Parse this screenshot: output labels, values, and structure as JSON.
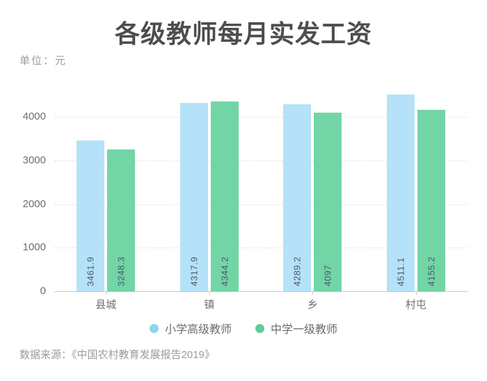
{
  "page": {
    "unit_label": "单位：元",
    "source": "数据来源：《中国农村教育发展报告2019》"
  },
  "chart_data": {
    "type": "bar",
    "title": "各级教师每月实发工资",
    "unit": "元",
    "categories": [
      "县城",
      "镇",
      "乡",
      "村屯"
    ],
    "series": [
      {
        "name": "小学高级教师",
        "color": "#b5e2f8",
        "legend_color": "#8fd4f2",
        "values": [
          3461.9,
          4317.9,
          4289.2,
          4511.1
        ]
      },
      {
        "name": "中学一级教师",
        "color": "#72d5a5",
        "legend_color": "#63cc9c",
        "values": [
          3248.3,
          4344.2,
          4097,
          4155.2
        ]
      }
    ],
    "y_ticks": [
      0,
      1000,
      2000,
      3000,
      4000
    ],
    "ylim": [
      0,
      4400
    ],
    "grid": "horizontal dashed gridlines, solid bottom axis, no vertical axis line",
    "legend_position": "bottom",
    "value_label_style": "inside bar near bottom, rotated 90° reading bottom-to-top"
  }
}
